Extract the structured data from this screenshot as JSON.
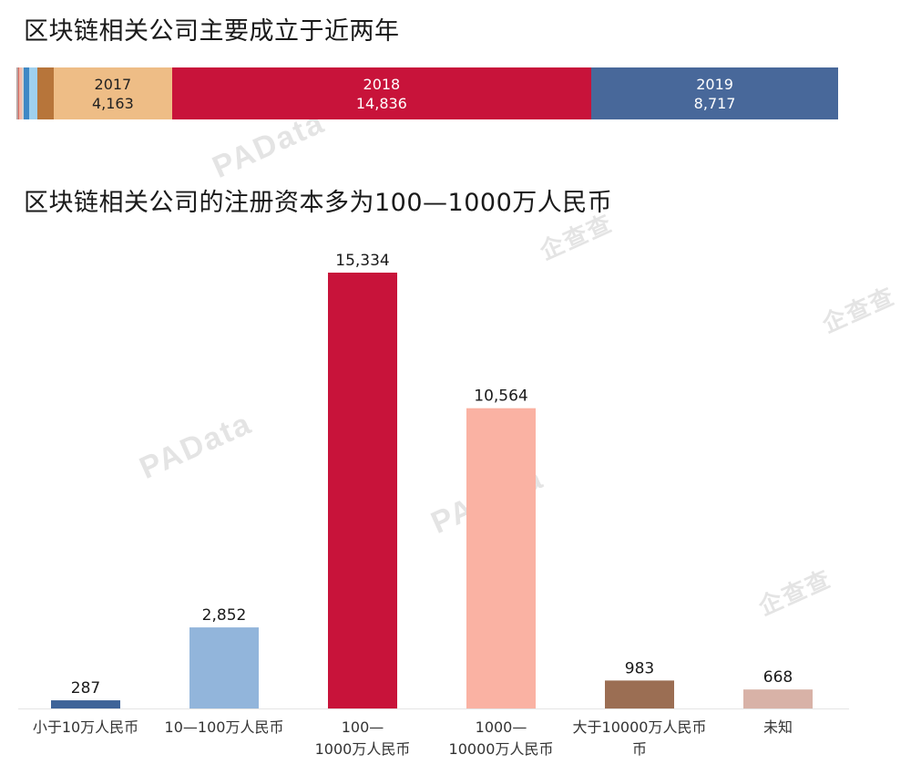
{
  "top_chart": {
    "title": "区块链相关公司主要成立于近两年"
  },
  "bottom_chart": {
    "title": "区块链相关公司的注册资本多为100—1000万人民币"
  },
  "watermarks": [
    "PAData",
    "PAData",
    "PAData",
    "企查查",
    "企查查",
    "企查查"
  ],
  "chart_data": [
    {
      "type": "bar",
      "orientation": "horizontal-stacked",
      "title": "区块链相关公司主要成立于近两年",
      "segments": [
        {
          "label": "",
          "value": 60,
          "color": "#b9a6a4",
          "show_label": false
        },
        {
          "label": "",
          "value": 50,
          "color": "#d9695f",
          "show_label": false
        },
        {
          "label": "",
          "value": 70,
          "color": "#f4b9a8",
          "show_label": false
        },
        {
          "label": "",
          "value": 80,
          "color": "#d8d1cc",
          "show_label": false
        },
        {
          "label": "",
          "value": 200,
          "color": "#3f88c5",
          "show_label": false
        },
        {
          "label": "",
          "value": 270,
          "color": "#9fd0ee",
          "show_label": false
        },
        {
          "label": "",
          "value": 600,
          "color": "#b7753a",
          "show_label": false
        },
        {
          "label": "2017",
          "value": 4163,
          "display_value": "4,163",
          "color": "#eebd86",
          "text_color": "#222222",
          "show_label": true
        },
        {
          "label": "2018",
          "value": 14836,
          "display_value": "14,836",
          "color": "#c8133a",
          "text_color": "#ffffff",
          "show_label": true
        },
        {
          "label": "2019",
          "value": 8717,
          "display_value": "8,717",
          "color": "#48689a",
          "text_color": "#ffffff",
          "show_label": true
        }
      ]
    },
    {
      "type": "bar",
      "title": "区块链相关公司的注册资本多为100—1000万人民币",
      "categories": [
        [
          "小于10万人民币"
        ],
        [
          "10—100万人民币"
        ],
        [
          "100—",
          "1000万人民币"
        ],
        [
          "1000—",
          "10000万人民币"
        ],
        [
          "大于10000万人民币",
          "币"
        ],
        [
          "未知"
        ]
      ],
      "values": [
        287,
        2852,
        15334,
        10564,
        983,
        668
      ],
      "value_labels": [
        "287",
        "2,852",
        "15,334",
        "10,564",
        "983",
        "668"
      ],
      "colors": [
        "#3e6498",
        "#92b5db",
        "#c8133a",
        "#fab2a3",
        "#9b6e53",
        "#d8b2a7"
      ],
      "ylim": [
        0,
        15334
      ],
      "grid": false,
      "legend": "none"
    }
  ]
}
